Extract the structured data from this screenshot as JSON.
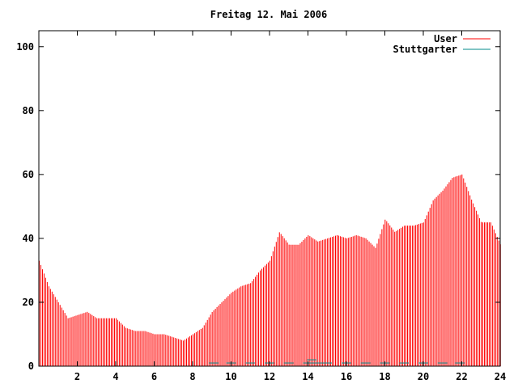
{
  "chart_data": {
    "type": "bar",
    "title": "Freitag 12. Mai 2006",
    "xlabel": "",
    "ylabel": "",
    "xlim": [
      0,
      24
    ],
    "ylim": [
      0,
      105
    ],
    "x_ticks": [
      2,
      4,
      6,
      8,
      10,
      12,
      14,
      16,
      18,
      20,
      22,
      24
    ],
    "y_ticks": [
      0,
      20,
      40,
      60,
      80,
      100
    ],
    "grid": false,
    "legend_position": "top-right",
    "series": [
      {
        "name": "User",
        "color": "#ff0000",
        "x": [
          0.0,
          0.5,
          1.0,
          1.5,
          2.0,
          2.5,
          3.0,
          3.5,
          4.0,
          4.5,
          5.0,
          5.5,
          6.0,
          6.5,
          7.0,
          7.5,
          8.0,
          8.5,
          9.0,
          9.5,
          10.0,
          10.5,
          11.0,
          11.5,
          12.0,
          12.5,
          13.0,
          13.5,
          14.0,
          14.5,
          15.0,
          15.5,
          16.0,
          16.5,
          17.0,
          17.5,
          18.0,
          18.5,
          19.0,
          19.5,
          20.0,
          20.5,
          21.0,
          21.5,
          22.0,
          22.5,
          23.0,
          23.5,
          24.0
        ],
        "values": [
          33,
          25,
          20,
          15,
          16,
          17,
          15,
          15,
          15,
          12,
          11,
          11,
          10,
          10,
          9,
          8,
          10,
          12,
          17,
          20,
          23,
          25,
          26,
          30,
          33,
          42,
          38,
          38,
          41,
          39,
          40,
          41,
          40,
          41,
          40,
          37,
          46,
          42,
          44,
          44,
          45,
          52,
          55,
          59,
          60,
          52,
          45,
          45,
          38
        ]
      },
      {
        "name": "Stuttgarter",
        "color": "#008b8b",
        "x": [
          9.1,
          10,
          11,
          12,
          13,
          14,
          14.2,
          14.5,
          15,
          16,
          17,
          18,
          19,
          20,
          21,
          21.9
        ],
        "values": [
          1,
          1,
          1,
          1,
          1,
          1,
          2,
          1,
          1,
          1,
          1,
          1,
          1,
          1,
          1,
          1
        ]
      }
    ]
  }
}
